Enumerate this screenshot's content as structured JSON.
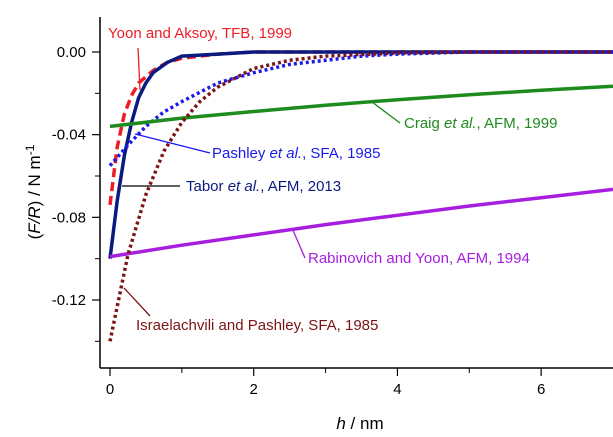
{
  "chart_data": {
    "type": "line",
    "xlabel": "h / nm",
    "ylabel": "(F/R) / N m-1",
    "xlabel_parts": {
      "var": "h",
      "unit": " / nm"
    },
    "ylabel_parts": {
      "open": "(",
      "var": "F/R",
      "close": ")",
      "unit": " / N m",
      "exp": "-1"
    },
    "xlim": [
      -0.1,
      7.0
    ],
    "ylim": [
      -0.15,
      0.015
    ],
    "x_ticks": [
      0,
      2,
      4,
      6
    ],
    "x_tick_labels": [
      "0",
      "2",
      "4",
      "6"
    ],
    "y_ticks": [
      0.0,
      -0.04,
      -0.08,
      -0.12
    ],
    "y_tick_labels": [
      "0.00",
      "-0.04",
      "-0.08",
      "-0.12"
    ],
    "grid": false,
    "series": [
      {
        "name": "Yoon and Aksoy, TFB, 1999",
        "color": "#ee1c25",
        "style": "dashed",
        "label": {
          "plain": "Yoon and Aksoy, TFB, 1999"
        },
        "x": [
          0.0,
          0.1,
          0.2,
          0.3,
          0.4,
          0.5,
          0.6,
          0.8,
          1.0,
          1.5,
          2.0,
          3.0,
          7.0
        ],
        "y": [
          -0.074,
          -0.046,
          -0.03,
          -0.021,
          -0.015,
          -0.012,
          -0.009,
          -0.005,
          -0.003,
          -0.001,
          0.0,
          0.0,
          0.0
        ]
      },
      {
        "name": "Tabor et al., AFM, 2013",
        "color": "#0a1a80",
        "style": "solid",
        "label": {
          "pre": "Tabor ",
          "ital": "et al.",
          "post": ", AFM, 2013"
        },
        "x": [
          0.0,
          0.1,
          0.2,
          0.3,
          0.4,
          0.5,
          0.6,
          0.8,
          1.0,
          1.5,
          2.0,
          3.0,
          7.0
        ],
        "y": [
          -0.1,
          -0.072,
          -0.05,
          -0.034,
          -0.022,
          -0.015,
          -0.01,
          -0.005,
          -0.002,
          -0.001,
          0.0,
          0.0,
          0.0
        ]
      },
      {
        "name": "Pashley et al., SFA, 1985",
        "color": "#1a1aee",
        "style": "dotted",
        "label": {
          "pre": "Pashley ",
          "ital": "et al.",
          "post": ", SFA, 1985"
        },
        "x": [
          0.0,
          0.25,
          0.5,
          0.75,
          1.0,
          1.5,
          2.0,
          2.5,
          3.0,
          3.5,
          4.0,
          5.0,
          6.0,
          7.0
        ],
        "y": [
          -0.055,
          -0.045,
          -0.036,
          -0.029,
          -0.024,
          -0.015,
          -0.01,
          -0.006,
          -0.004,
          -0.002,
          -0.001,
          0.0,
          0.0,
          0.0
        ]
      },
      {
        "name": "Craig et al., AFM, 1999",
        "color": "#1e8b1e",
        "style": "solid",
        "label": {
          "pre": "Craig ",
          "ital": "et al.",
          "post": ", AFM, 1999"
        },
        "x": [
          0.0,
          1.0,
          2.0,
          3.0,
          4.0,
          5.0,
          6.0,
          7.0
        ],
        "y": [
          -0.036,
          -0.032,
          -0.0288,
          -0.0258,
          -0.0231,
          -0.0207,
          -0.0185,
          -0.0166
        ]
      },
      {
        "name": "Rabinovich and Yoon, AFM, 1994",
        "color": "#a61ee0",
        "style": "solid",
        "label": {
          "plain": "Rabinovich and Yoon, AFM, 1994"
        },
        "x": [
          0.0,
          1.0,
          2.0,
          3.0,
          4.0,
          5.0,
          6.0,
          7.0
        ],
        "y": [
          -0.099,
          -0.0935,
          -0.0885,
          -0.0835,
          -0.079,
          -0.0745,
          -0.0705,
          -0.0665
        ]
      },
      {
        "name": "Israelachvili and Pashley, SFA, 1985",
        "color": "#7b1414",
        "style": "dotted",
        "label": {
          "plain": "Israelachvili and Pashley, SFA, 1985"
        },
        "x": [
          0.0,
          0.25,
          0.5,
          0.75,
          1.0,
          1.25,
          1.5,
          2.0,
          2.5,
          3.0,
          4.0,
          5.0,
          6.0,
          7.0
        ],
        "y": [
          -0.14,
          -0.098,
          -0.069,
          -0.048,
          -0.034,
          -0.024,
          -0.017,
          -0.008,
          -0.004,
          -0.002,
          -0.0005,
          0.0,
          0.0,
          0.0
        ]
      }
    ]
  }
}
